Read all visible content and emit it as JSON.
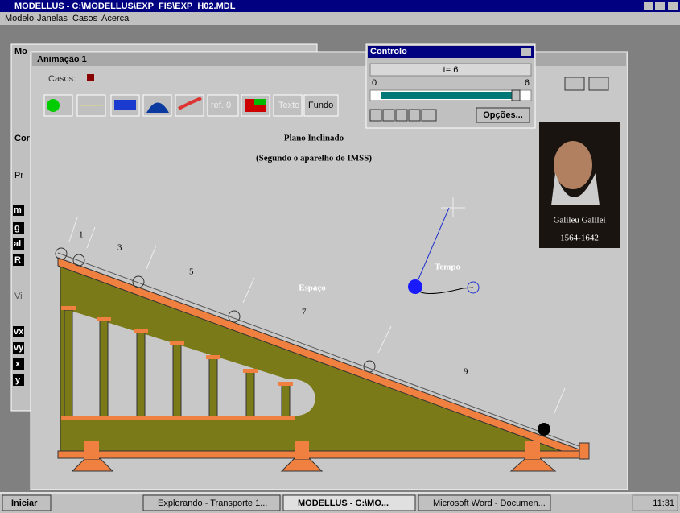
{
  "app": {
    "title": "MODELLUS - C:\\MODELLUS\\EXP_FIS\\EXP_H02.MDL",
    "menu": [
      "Modelo",
      "Janelas",
      "Casos",
      "Acerca"
    ]
  },
  "back_window": {
    "title": "Mo",
    "labels": [
      "Cor",
      "Pr",
      "m",
      "g",
      "al",
      "R",
      "Vi",
      "vx",
      "vy",
      "x",
      "y"
    ]
  },
  "animation": {
    "title": "Animação 1",
    "cases_label": "Casos:",
    "buttons": [
      "ref. 0",
      "Texto",
      "Fundo"
    ],
    "heading": "Plano Inclinado",
    "subheading": "(Segundo o aparelho do IMSS)",
    "marks": [
      "1",
      "3",
      "5",
      "7",
      "9"
    ],
    "space_label": "Espaço",
    "time_label": "Tempo",
    "portrait": {
      "name": "Galileu Galilei",
      "years": "1564-1642"
    }
  },
  "control": {
    "title": "Controlo",
    "time": "t= 6",
    "slider_min": "0",
    "slider_max": "6",
    "options": "Opções..."
  },
  "taskbar": {
    "start": "Iniciar",
    "tasks": [
      "Explorando - Transporte 1...",
      "MODELLUS - C:\\MO...",
      "Microsoft Word - Documen..."
    ],
    "clock": "11:31"
  }
}
